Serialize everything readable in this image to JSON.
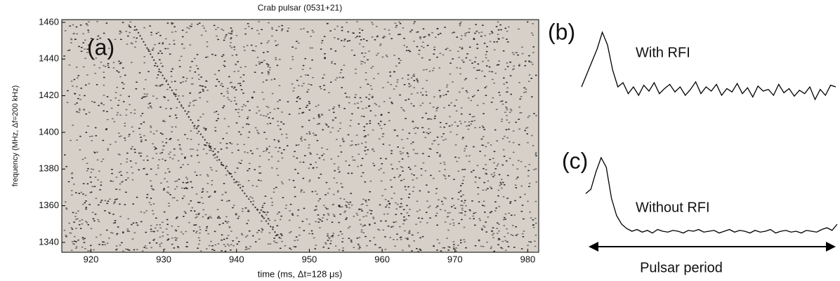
{
  "chart_data": [
    {
      "type": "line",
      "title": "Crab pulsar (0531+21)",
      "panel_label": "(a)",
      "x_label": "time (ms, Δt=128 μs)",
      "y_label": "frequency (MHz, Δf=200 kHz)",
      "x": [
        926,
        930,
        934,
        938,
        942,
        946
      ],
      "values": [
        1458,
        1430,
        1405,
        1383,
        1362,
        1342
      ],
      "color": "#333333",
      "xlim": [
        916,
        981.5
      ],
      "ylim": [
        1334.6,
        1461.5
      ],
      "xticks": [
        920,
        930,
        940,
        950,
        960,
        970,
        980
      ],
      "yticks": [
        1340,
        1360,
        1380,
        1400,
        1420,
        1440,
        1460
      ],
      "background": "#d6d0c9"
    },
    {
      "type": "line",
      "panel_label": "(b)",
      "annotation": "With RFI",
      "color": "#000000",
      "ylim": [
        0,
        1
      ],
      "values": [
        0.3,
        0.45,
        0.6,
        0.75,
        0.95,
        0.8,
        0.5,
        0.3,
        0.35,
        0.22,
        0.3,
        0.2,
        0.32,
        0.25,
        0.35,
        0.22,
        0.28,
        0.33,
        0.24,
        0.3,
        0.2,
        0.27,
        0.36,
        0.22,
        0.3,
        0.25,
        0.33,
        0.2,
        0.28,
        0.24,
        0.34,
        0.22,
        0.29,
        0.18,
        0.31,
        0.25,
        0.27,
        0.2,
        0.33,
        0.23,
        0.28,
        0.19,
        0.26,
        0.22,
        0.3,
        0.15,
        0.27,
        0.2,
        0.32,
        0.3
      ]
    },
    {
      "type": "line",
      "panel_label": "(c)",
      "annotation": "Without RFI",
      "arrow_label": "Pulsar period",
      "color": "#000000",
      "ylim": [
        0,
        1
      ],
      "values": [
        0.55,
        0.6,
        0.8,
        0.96,
        0.85,
        0.5,
        0.3,
        0.2,
        0.15,
        0.12,
        0.14,
        0.11,
        0.13,
        0.1,
        0.14,
        0.12,
        0.11,
        0.13,
        0.12,
        0.1,
        0.13,
        0.12,
        0.14,
        0.11,
        0.12,
        0.13,
        0.1,
        0.12,
        0.14,
        0.11,
        0.13,
        0.12,
        0.1,
        0.13,
        0.11,
        0.12,
        0.14,
        0.1,
        0.12,
        0.13,
        0.11,
        0.12,
        0.1,
        0.13,
        0.12,
        0.11,
        0.14,
        0.16,
        0.13,
        0.2
      ]
    }
  ]
}
